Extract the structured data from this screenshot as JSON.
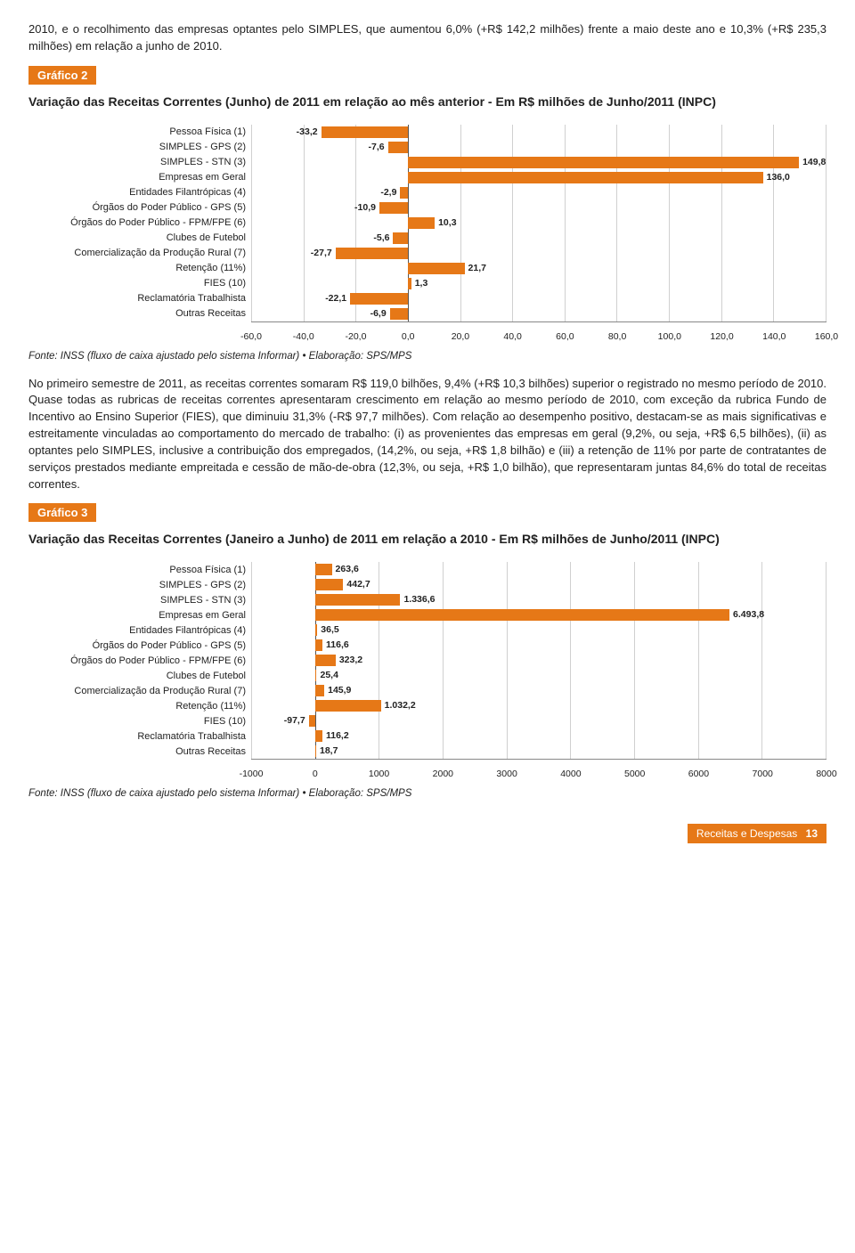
{
  "intro_paragraph": "2010, e o recolhimento das empresas optantes pelo SIMPLES, que aumentou 6,0% (+R$ 142,2 milhões) frente a maio deste ano e 10,3% (+R$ 235,3 milhões) em relação a junho de 2010.",
  "chart2": {
    "tag": "Gráfico 2",
    "title": "Variação das Receitas Correntes (Junho) de 2011 em relação ao mês anterior - Em R$ milhões de Junho/2011 (INPC)",
    "type": "bar-horizontal",
    "bar_color": "#e67817",
    "grid_color": "#d0d0d0",
    "border_color": "#888888",
    "background_color": "#ffffff",
    "label_fontsize": 11,
    "value_fontsize": 10.5,
    "xmin": -60.0,
    "xmax": 160.0,
    "xtick_step": 20.0,
    "xticks": [
      "-60,0",
      "-40,0",
      "-20,0",
      "0,0",
      "20,0",
      "40,0",
      "60,0",
      "80,0",
      "100,0",
      "120,0",
      "140,0",
      "160,0"
    ],
    "categories": [
      "Pessoa Física (1)",
      "SIMPLES - GPS (2)",
      "SIMPLES - STN (3)",
      "Empresas em Geral",
      "Entidades Filantrópicas (4)",
      "Órgãos do Poder Público - GPS (5)",
      "Órgãos do Poder Público - FPM/FPE (6)",
      "Clubes de Futebol",
      "Comercialização da Produção Rural (7)",
      "Retenção (11%)",
      "FIES (10)",
      "Reclamatória Trabalhista",
      "Outras Receitas"
    ],
    "values": [
      -33.2,
      -7.6,
      149.8,
      136.0,
      -2.9,
      -10.9,
      10.3,
      -5.6,
      -27.7,
      21.7,
      1.3,
      -22.1,
      -6.9
    ],
    "value_labels": [
      "-33,2",
      "-7,6",
      "149,8",
      "136,0",
      "-2,9",
      "-10,9",
      "10,3",
      "-5,6",
      "-27,7",
      "21,7",
      "1,3",
      "-22,1",
      "-6,9"
    ]
  },
  "source_note": "Fonte: INSS (fluxo de caixa ajustado pelo sistema Informar) • Elaboração: SPS/MPS",
  "mid_paragraph": "No primeiro semestre de 2011, as receitas correntes somaram R$ 119,0 bilhões, 9,4% (+R$ 10,3 bilhões) superior o registrado no mesmo período de 2010. Quase todas as rubricas de receitas correntes apresentaram crescimento em relação ao mesmo período de 2010, com exceção da rubrica Fundo de Incentivo ao Ensino Superior (FIES), que diminuiu 31,3% (-R$ 97,7 milhões). Com relação ao desempenho positivo, destacam-se as mais significativas e estreitamente vinculadas ao comportamento do mercado de trabalho: (i) as provenientes das empresas em geral (9,2%, ou seja, +R$ 6,5 bilhões), (ii) as optantes pelo SIMPLES, inclusive a contribuição dos empregados, (14,2%, ou seja, +R$ 1,8 bilhão) e (iii) a retenção de 11% por parte de contratantes de serviços prestados mediante empreitada e cessão de mão-de-obra (12,3%, ou seja, +R$ 1,0 bilhão), que representaram juntas 84,6% do total de receitas correntes.",
  "chart3": {
    "tag": "Gráfico 3",
    "title": "Variação das Receitas Correntes (Janeiro a Junho) de 2011 em relação a 2010 - Em R$ milhões de Junho/2011 (INPC)",
    "type": "bar-horizontal",
    "bar_color": "#e67817",
    "grid_color": "#d0d0d0",
    "border_color": "#888888",
    "background_color": "#ffffff",
    "label_fontsize": 11,
    "value_fontsize": 10.5,
    "xmin": -1000,
    "xmax": 8000,
    "xtick_step": 1000,
    "xticks": [
      "-1000",
      "0",
      "1000",
      "2000",
      "3000",
      "4000",
      "5000",
      "6000",
      "7000",
      "8000"
    ],
    "categories": [
      "Pessoa Física (1)",
      "SIMPLES - GPS (2)",
      "SIMPLES - STN (3)",
      "Empresas em Geral",
      "Entidades Filantrópicas (4)",
      "Órgãos do Poder Público - GPS (5)",
      "Órgãos do Poder Público - FPM/FPE (6)",
      "Clubes de Futebol",
      "Comercialização da Produção Rural (7)",
      "Retenção (11%)",
      "FIES (10)",
      "Reclamatória Trabalhista",
      "Outras Receitas"
    ],
    "values": [
      263.6,
      442.7,
      1336.6,
      6493.8,
      36.5,
      116.6,
      323.2,
      25.4,
      145.9,
      1032.2,
      -97.7,
      116.2,
      18.7
    ],
    "value_labels": [
      "263,6",
      "442,7",
      "1.336,6",
      "6.493,8",
      "36,5",
      "116,6",
      "323,2",
      "25,4",
      "145,9",
      "1.032,2",
      "-97,7",
      "116,2",
      "18,7"
    ]
  },
  "footer": {
    "section": "Receitas e Despesas",
    "page": "13"
  }
}
